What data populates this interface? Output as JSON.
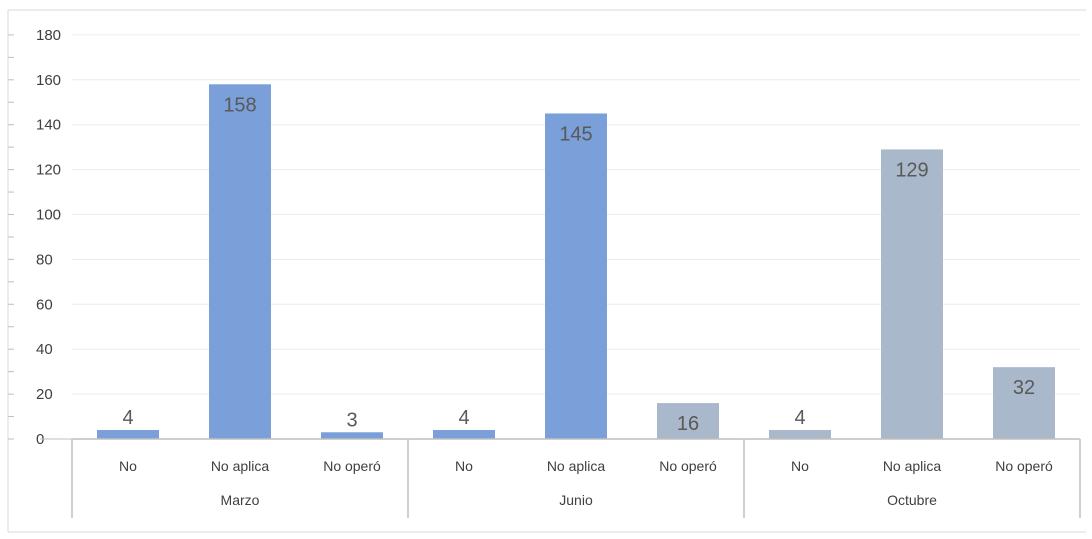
{
  "chart_data": {
    "type": "bar",
    "ylim": [
      0,
      180
    ],
    "ytick_step": 20,
    "y_ticks": [
      "0",
      "20",
      "40",
      "60",
      "80",
      "100",
      "120",
      "140",
      "160",
      "180"
    ],
    "grid": true,
    "groups": [
      {
        "label": "Marzo",
        "bars": [
          {
            "category": "No",
            "value": 4,
            "label": "4",
            "color": "#7a9fd9"
          },
          {
            "category": "No aplica",
            "value": 158,
            "label": "158",
            "color": "#7a9fd9"
          },
          {
            "category": "No operó",
            "value": 3,
            "label": "3",
            "color": "#7a9fd9"
          }
        ]
      },
      {
        "label": "Junio",
        "bars": [
          {
            "category": "No",
            "value": 4,
            "label": "4",
            "color": "#7a9fd9"
          },
          {
            "category": "No aplica",
            "value": 145,
            "label": "145",
            "color": "#7a9fd9"
          },
          {
            "category": "No operó",
            "value": 16,
            "label": "16",
            "color": "#aab8cb"
          }
        ]
      },
      {
        "label": "Octubre",
        "bars": [
          {
            "category": "No",
            "value": 4,
            "label": "4",
            "color": "#aab8cb"
          },
          {
            "category": "No aplica",
            "value": 129,
            "label": "129",
            "color": "#aab8cb"
          },
          {
            "category": "No operó",
            "value": 32,
            "label": "32",
            "color": "#aab8cb"
          }
        ]
      }
    ]
  }
}
